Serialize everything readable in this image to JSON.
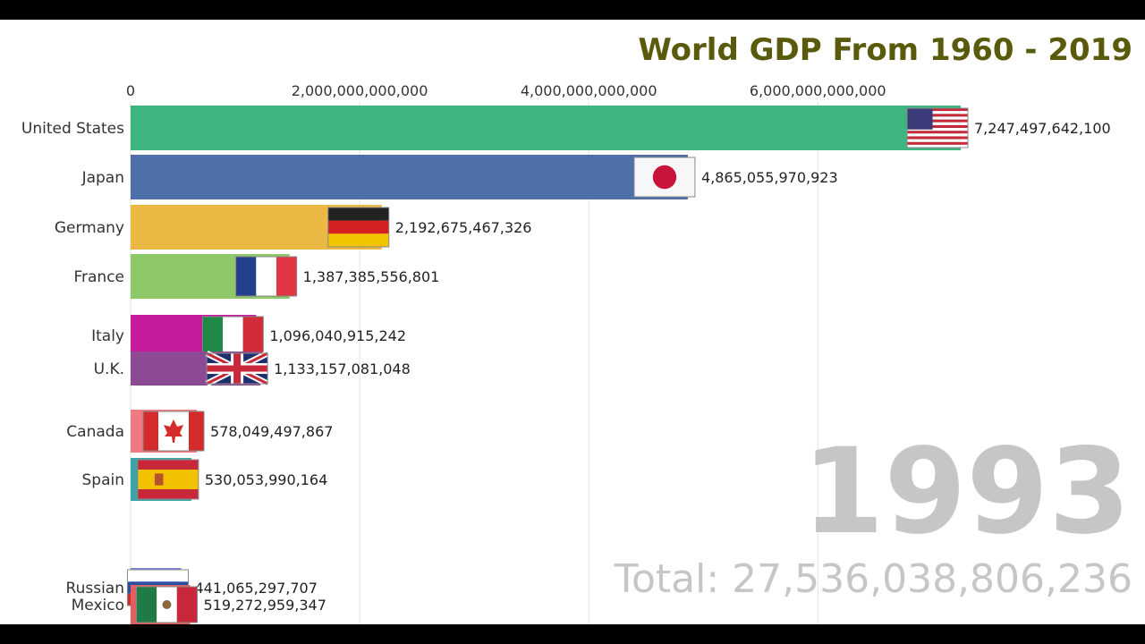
{
  "chart_data": {
    "type": "bar",
    "title": "World GDP From 1960 - 2019",
    "year_label": "1993",
    "total_label": "Total: 27,536,038,806,236",
    "xlim": [
      0,
      7247497642100
    ],
    "xticks": [
      0,
      2000000000000,
      4000000000000,
      6000000000000
    ],
    "xtick_labels": [
      "0",
      "2,000,000,000,000",
      "4,000,000,000,000",
      "6,000,000,000,000"
    ],
    "grid": true,
    "categories": [
      "United States",
      "Japan",
      "Germany",
      "France",
      "Italy",
      "U.K.",
      "Canada",
      "Spain",
      "Russian",
      "Mexico"
    ],
    "values": [
      7247497642100,
      4865055970923,
      2192675467326,
      1387385556801,
      1096040915242,
      1133157081048,
      578049497867,
      530053990164,
      441065297707,
      519272959347
    ],
    "value_labels": [
      "7,247,497,642,100",
      "4,865,055,970,923",
      "2,192,675,467,326",
      "1,387,385,556,801",
      "1,096,040,915,242",
      "1,133,157,081,048",
      "578,049,497,867",
      "530,053,990,164",
      "441,065,297,707",
      "519,272,959,347"
    ],
    "colors": [
      "#3cb57f",
      "#4e6fa9",
      "#ebb843",
      "#8ec869",
      "#c51a9b",
      "#8c4a95",
      "#ee7a82",
      "#3ba3a6",
      "#7d7dd6",
      "#e06060"
    ],
    "flags": [
      "us-flag",
      "japan-flag",
      "germany-flag",
      "france-flag",
      "italy-flag",
      "uk-flag",
      "canada-flag",
      "spain-flag",
      "russia-flag",
      "mexico-flag"
    ]
  }
}
